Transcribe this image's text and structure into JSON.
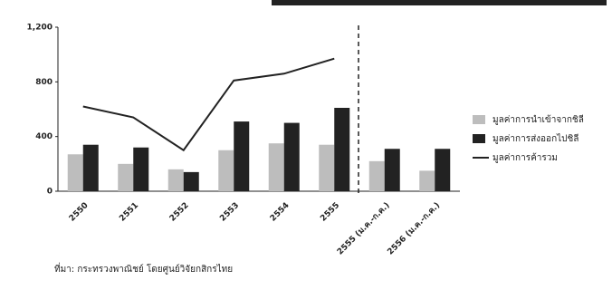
{
  "chart_data": {
    "type": "bar",
    "categories": [
      "2550",
      "2551",
      "2552",
      "2553",
      "2554",
      "2555",
      "2555 (ม.ค.-ก.ค.)",
      "2556 (ม.ค.-ก.ค.)"
    ],
    "series": [
      {
        "name": "มูลค่าการนำเข้าจากชิลี",
        "color": "#bdbdbd",
        "values": [
          270,
          200,
          160,
          300,
          350,
          340,
          220,
          150
        ]
      },
      {
        "name": "มูลค่าการส่งออกไปชิลี",
        "color": "#222222",
        "values": [
          340,
          320,
          140,
          510,
          500,
          610,
          310,
          310
        ]
      },
      {
        "name": "มูลค่าการค้ารวม",
        "color": "#222222",
        "type": "line",
        "values": [
          620,
          540,
          300,
          810,
          860,
          970,
          null,
          null
        ]
      }
    ],
    "ylim": [
      0,
      1200
    ],
    "yticks": [
      0,
      400,
      800,
      {
        "value": 1200,
        "label": "1,200"
      }
    ],
    "source": "ที่มา: กระทรวงพาณิชย์ โดยศูนย์วิจัยกสิกรไทย"
  }
}
